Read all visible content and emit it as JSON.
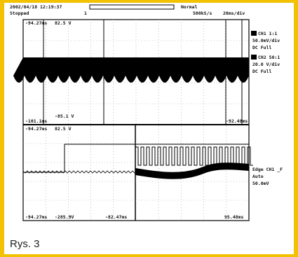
{
  "header": {
    "timestamp": "2002/04/18 12:19:37",
    "status": "Stopped",
    "record": "1",
    "acquisition": "Normal",
    "sample_rate": "500kS/s",
    "timebase": "20ms/div"
  },
  "channels": [
    {
      "label": "CH1 1:1",
      "scale": "50.0mV/div",
      "coupling": "DC  Full"
    },
    {
      "label": "CH2 50:1",
      "scale": "20.0 V/div",
      "coupling": "DC  Full"
    }
  ],
  "trigger": {
    "type": "Edge CH1 _F",
    "mode": "Auto",
    "level": "50.0mV"
  },
  "upper": {
    "top_left": "-94.27ms",
    "top_mid": "82.5 V",
    "bottom_left": "-101.1ms",
    "bottom_mid": "-85.1 V",
    "bottom_right": "-92.48ms"
  },
  "lower": {
    "top_left": "-94.27ms",
    "top_mid": "82.5 V",
    "bottom_left": "-94.27ms",
    "bottom_mid": "-285.9V",
    "bottom_center": "-82.47ms",
    "bottom_right": "95.48ms"
  },
  "caption": "Rys. 3"
}
